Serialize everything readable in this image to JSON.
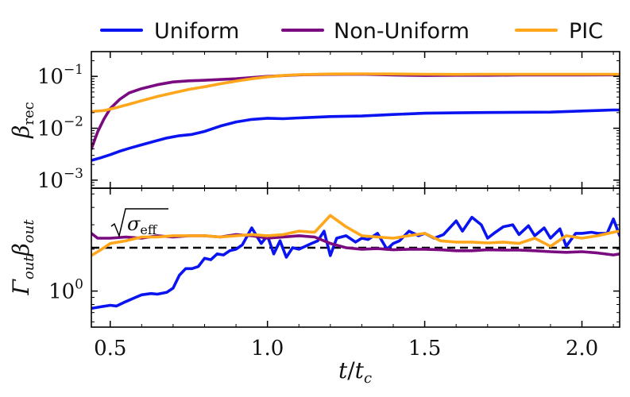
{
  "chart_data": [
    {
      "type": "line",
      "panel": "top",
      "ylabel": "β_rec",
      "ylabel_main": "β",
      "ylabel_sub": "rec",
      "yscale": "log",
      "ylim": [
        0.0007,
        0.3
      ],
      "xlim": [
        0.44,
        2.12
      ],
      "yticks": [
        {
          "value": 0.1,
          "base": "10",
          "exp": "−1"
        },
        {
          "value": 0.01,
          "base": "10",
          "exp": "−2"
        },
        {
          "value": 0.001,
          "base": "10",
          "exp": "−3"
        }
      ],
      "series": [
        {
          "name": "Uniform",
          "color": "#0a14f0",
          "x": [
            0.44,
            0.47,
            0.5,
            0.53,
            0.56,
            0.6,
            0.64,
            0.68,
            0.72,
            0.76,
            0.8,
            0.85,
            0.9,
            0.95,
            1.0,
            1.05,
            1.1,
            1.15,
            1.2,
            1.3,
            1.4,
            1.5,
            1.6,
            1.7,
            1.8,
            1.9,
            2.0,
            2.1,
            2.12
          ],
          "y": [
            0.0024,
            0.0027,
            0.0031,
            0.0036,
            0.0041,
            0.0048,
            0.0056,
            0.0065,
            0.0072,
            0.0076,
            0.0087,
            0.011,
            0.0132,
            0.0148,
            0.0156,
            0.0153,
            0.0158,
            0.0163,
            0.0168,
            0.0172,
            0.0184,
            0.0195,
            0.0198,
            0.0201,
            0.0203,
            0.0205,
            0.0215,
            0.0225,
            0.0225
          ]
        },
        {
          "name": "Non-Uniform",
          "color": "#7a0a80",
          "x": [
            0.44,
            0.46,
            0.48,
            0.5,
            0.53,
            0.56,
            0.6,
            0.65,
            0.7,
            0.75,
            0.8,
            0.9,
            1.0,
            1.1,
            1.2,
            1.3,
            1.4,
            1.5,
            1.6,
            1.7,
            1.8,
            1.9,
            2.0,
            2.12
          ],
          "y": [
            0.004,
            0.0085,
            0.015,
            0.024,
            0.036,
            0.048,
            0.058,
            0.069,
            0.078,
            0.082,
            0.084,
            0.09,
            0.1,
            0.107,
            0.109,
            0.11,
            0.106,
            0.104,
            0.105,
            0.105,
            0.106,
            0.106,
            0.106,
            0.107
          ]
        },
        {
          "name": "PIC",
          "color": "#ffa61a",
          "x": [
            0.44,
            0.48,
            0.52,
            0.56,
            0.6,
            0.65,
            0.7,
            0.75,
            0.8,
            0.85,
            0.9,
            0.95,
            1.0,
            1.05,
            1.1,
            1.2,
            1.3,
            1.4,
            1.5,
            1.6,
            1.7,
            1.8,
            1.9,
            2.0,
            2.12
          ],
          "y": [
            0.021,
            0.022,
            0.025,
            0.029,
            0.034,
            0.041,
            0.048,
            0.056,
            0.063,
            0.072,
            0.081,
            0.09,
            0.098,
            0.104,
            0.108,
            0.111,
            0.112,
            0.111,
            0.11,
            0.109,
            0.11,
            0.11,
            0.11,
            0.11,
            0.11
          ]
        }
      ]
    },
    {
      "type": "line",
      "panel": "bottom",
      "ylabel": "Γ_out β_out",
      "yscale": "log",
      "ylim": [
        0.55,
        5.5
      ],
      "xlim": [
        0.44,
        2.12
      ],
      "xlabel": "t/t_c",
      "xlabel_num": "t",
      "xlabel_den": "t",
      "xlabel_den_sub": "c",
      "xticks": [
        0.5,
        1.0,
        1.5,
        2.0
      ],
      "xtick_labels": [
        "0.5",
        "1.0",
        "1.5",
        "2.0"
      ],
      "yticks": [
        {
          "value": 1,
          "base": "10",
          "exp": "0"
        }
      ],
      "reference_line": {
        "label": "√σ_eff",
        "label_main": "σ",
        "label_sub": "eff",
        "value": 2.05,
        "style": "dashed",
        "color": "#000000"
      },
      "series": [
        {
          "name": "Uniform",
          "color": "#0a14f0",
          "x": [
            0.44,
            0.47,
            0.5,
            0.52,
            0.55,
            0.58,
            0.6,
            0.63,
            0.65,
            0.68,
            0.7,
            0.72,
            0.74,
            0.76,
            0.78,
            0.8,
            0.82,
            0.84,
            0.86,
            0.88,
            0.9,
            0.92,
            0.95,
            0.98,
            1.0,
            1.02,
            1.04,
            1.06,
            1.08,
            1.1,
            1.12,
            1.14,
            1.16,
            1.18,
            1.2,
            1.22,
            1.25,
            1.28,
            1.3,
            1.32,
            1.35,
            1.38,
            1.4,
            1.42,
            1.45,
            1.48,
            1.5,
            1.53,
            1.56,
            1.6,
            1.62,
            1.65,
            1.68,
            1.7,
            1.72,
            1.75,
            1.78,
            1.8,
            1.83,
            1.85,
            1.88,
            1.9,
            1.93,
            1.95,
            1.98,
            2.0,
            2.03,
            2.05,
            2.08,
            2.1,
            2.12
          ],
          "y": [
            0.75,
            0.77,
            0.79,
            0.78,
            0.84,
            0.9,
            0.94,
            0.96,
            0.95,
            0.98,
            1.05,
            1.3,
            1.45,
            1.45,
            1.5,
            1.72,
            1.68,
            1.85,
            1.82,
            1.95,
            2.0,
            2.15,
            2.85,
            2.2,
            2.5,
            1.85,
            2.3,
            1.75,
            2.05,
            2.0,
            2.1,
            2.2,
            2.3,
            2.7,
            1.8,
            2.4,
            2.5,
            2.25,
            2.4,
            2.35,
            2.6,
            2.0,
            2.2,
            2.3,
            2.7,
            2.5,
            2.6,
            2.4,
            2.55,
            3.2,
            2.7,
            3.4,
            3.0,
            2.4,
            2.6,
            2.9,
            3.0,
            2.55,
            2.95,
            2.5,
            2.85,
            2.4,
            2.8,
            2.1,
            2.6,
            2.6,
            2.65,
            2.6,
            2.6,
            3.3,
            2.5
          ]
        },
        {
          "name": "Non-Uniform",
          "color": "#7a0a80",
          "x": [
            0.44,
            0.46,
            0.5,
            0.55,
            0.6,
            0.65,
            0.7,
            0.75,
            0.8,
            0.85,
            0.9,
            0.95,
            1.0,
            1.05,
            1.1,
            1.15,
            1.2,
            1.25,
            1.3,
            1.35,
            1.4,
            1.45,
            1.5,
            1.55,
            1.6,
            1.65,
            1.7,
            1.75,
            1.8,
            1.85,
            1.9,
            1.95,
            2.0,
            2.05,
            2.1,
            2.12
          ],
          "y": [
            2.6,
            2.4,
            2.4,
            2.45,
            2.4,
            2.5,
            2.45,
            2.5,
            2.5,
            2.45,
            2.55,
            2.5,
            2.4,
            2.45,
            2.5,
            2.45,
            2.2,
            2.05,
            2.0,
            2.02,
            1.98,
            2.0,
            2.0,
            1.98,
            1.95,
            1.95,
            1.98,
            1.97,
            1.97,
            1.95,
            1.92,
            1.9,
            1.92,
            1.88,
            1.82,
            1.85
          ]
        },
        {
          "name": "PIC",
          "color": "#ffa61a",
          "x": [
            0.44,
            0.47,
            0.5,
            0.55,
            0.6,
            0.65,
            0.7,
            0.75,
            0.8,
            0.85,
            0.9,
            0.95,
            1.0,
            1.05,
            1.1,
            1.15,
            1.2,
            1.25,
            1.3,
            1.35,
            1.4,
            1.45,
            1.5,
            1.55,
            1.6,
            1.65,
            1.7,
            1.75,
            1.8,
            1.85,
            1.9,
            1.95,
            2.0,
            2.05,
            2.1,
            2.12
          ],
          "y": [
            1.8,
            1.98,
            2.2,
            2.3,
            2.45,
            2.45,
            2.5,
            2.5,
            2.5,
            2.45,
            2.5,
            2.55,
            2.5,
            2.55,
            2.7,
            2.65,
            3.5,
            2.9,
            2.5,
            2.45,
            2.4,
            2.5,
            2.6,
            2.3,
            2.25,
            2.25,
            2.22,
            2.25,
            2.2,
            2.4,
            2.1,
            2.5,
            2.4,
            2.5,
            2.65,
            2.7
          ]
        }
      ]
    }
  ]
}
